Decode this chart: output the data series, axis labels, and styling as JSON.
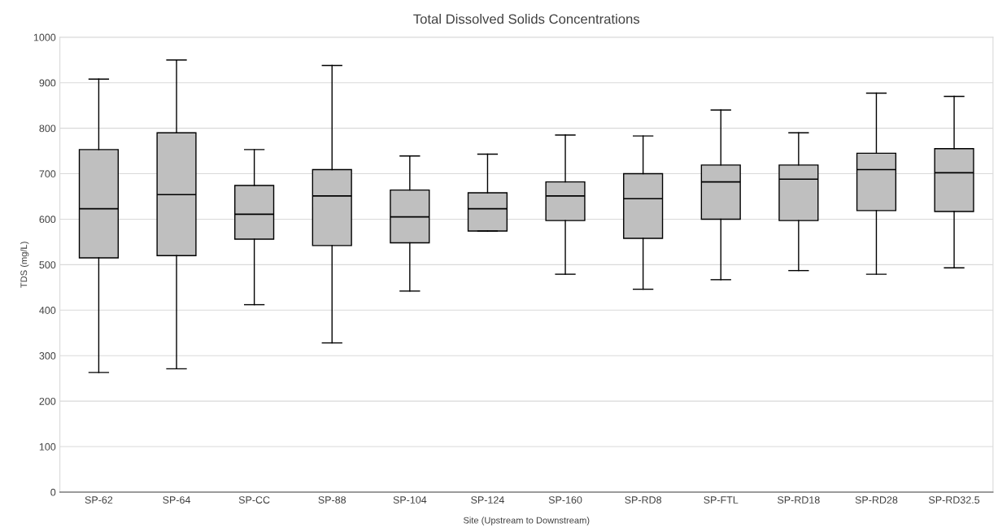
{
  "chart_data": {
    "type": "box",
    "title": "Total Dissolved Solids Concentrations",
    "xlabel": "Site (Upstream to Downstream)",
    "ylabel": "TDS (mg/L)",
    "categories": [
      "SP-62",
      "SP-64",
      "SP-CC",
      "SP-88",
      "SP-104",
      "SP-124",
      "SP-160",
      "SP-RD8",
      "SP-FTL",
      "SP-RD18",
      "SP-RD28",
      "SP-RD32.5"
    ],
    "color": "#bfbfbf",
    "ylim": [
      0,
      1000
    ],
    "yticks": [
      0,
      100,
      200,
      300,
      400,
      500,
      600,
      700,
      800,
      900,
      1000
    ],
    "grid": "y",
    "boxes": [
      {
        "low": 263,
        "q1": 515,
        "median": 623,
        "q3": 753,
        "high": 908
      },
      {
        "low": 271,
        "q1": 520,
        "median": 654,
        "q3": 790,
        "high": 950
      },
      {
        "low": 412,
        "q1": 556,
        "median": 611,
        "q3": 674,
        "high": 753
      },
      {
        "low": 328,
        "q1": 542,
        "median": 651,
        "q3": 709,
        "high": 938
      },
      {
        "low": 442,
        "q1": 548,
        "median": 605,
        "q3": 664,
        "high": 739
      },
      {
        "low": 574,
        "q1": 574,
        "median": 623,
        "q3": 658,
        "high": 743
      },
      {
        "low": 479,
        "q1": 597,
        "median": 651,
        "q3": 682,
        "high": 785
      },
      {
        "low": 446,
        "q1": 558,
        "median": 645,
        "q3": 700,
        "high": 783
      },
      {
        "low": 467,
        "q1": 600,
        "median": 682,
        "q3": 719,
        "high": 840
      },
      {
        "low": 487,
        "q1": 597,
        "median": 688,
        "q3": 719,
        "high": 790
      },
      {
        "low": 479,
        "q1": 619,
        "median": 709,
        "q3": 745,
        "high": 877
      },
      {
        "low": 493,
        "q1": 617,
        "median": 702,
        "q3": 755,
        "high": 870
      }
    ]
  }
}
